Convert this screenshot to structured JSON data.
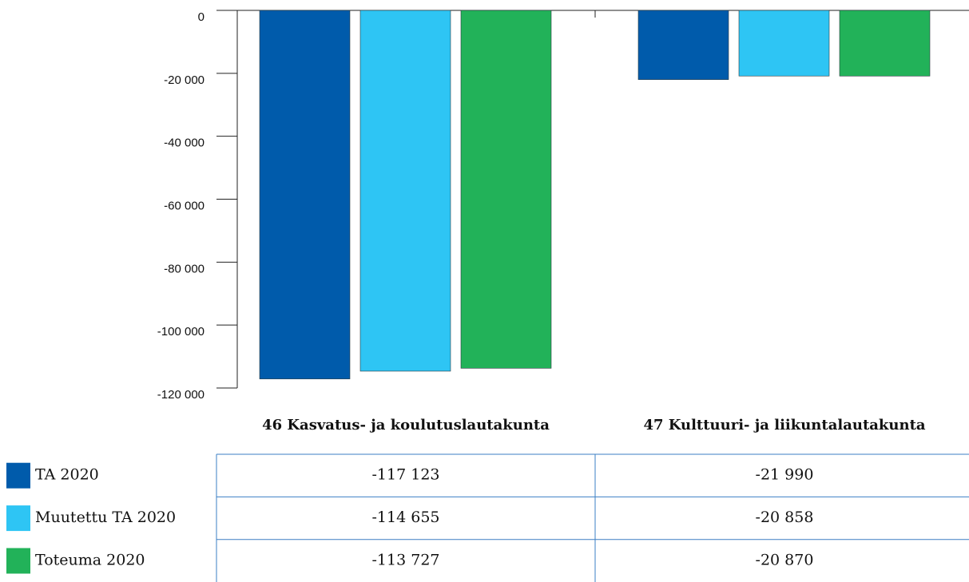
{
  "chart_data": {
    "type": "bar",
    "categories": [
      "46 Kasvatus- ja koulutuslautakunta",
      "47 Kulttuuri- ja liikuntalautakunta"
    ],
    "series": [
      {
        "name": "TA 2020",
        "color": "#005bab",
        "values": [
          -117123,
          -21990
        ],
        "value_labels": [
          "-117 123",
          "-21 990"
        ]
      },
      {
        "name": "Muutettu TA 2020",
        "color": "#2ec5f4",
        "values": [
          -114655,
          -20858
        ],
        "value_labels": [
          "-114 655",
          "-20 858"
        ]
      },
      {
        "name": "Toteuma 2020",
        "color": "#22b259",
        "values": [
          -113727,
          -20870
        ],
        "value_labels": [
          "-113 727",
          "-20 870"
        ]
      }
    ],
    "ylim": [
      -120000,
      0
    ],
    "yticks": [
      0,
      {
        "value": -20000,
        "label": "-20 000"
      },
      {
        "value": -40000,
        "label": "-40 000"
      },
      {
        "value": -60000,
        "label": "-60 000"
      },
      {
        "value": -80000,
        "label": "-80 000"
      },
      {
        "value": -100000,
        "label": "-100 000"
      },
      {
        "value": -120000,
        "label": "-120 000"
      }
    ]
  }
}
